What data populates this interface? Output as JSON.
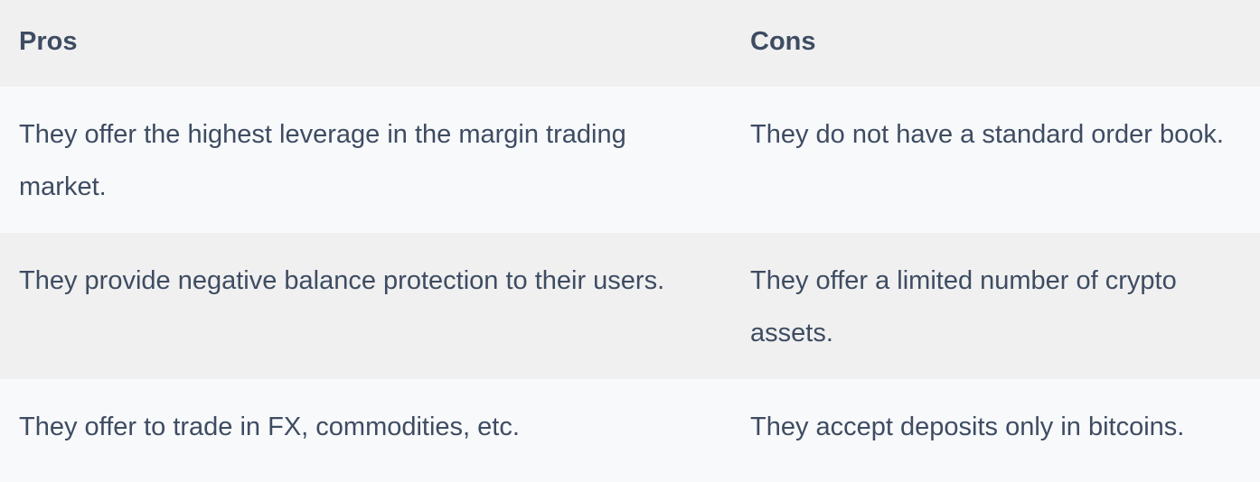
{
  "table": {
    "headers": {
      "pros": "Pros",
      "cons": "Cons"
    },
    "rows": [
      {
        "pro": "They offer the highest leverage in the margin trading market.",
        "con": "They do not have a standard order book."
      },
      {
        "pro": "They provide negative balance protection to their users.",
        "con": "They offer a limited number of crypto assets."
      },
      {
        "pro": "They offer to trade in FX, commodities, etc.",
        "con": "They accept deposits only in bitcoins."
      }
    ]
  },
  "colors": {
    "text": "#3e4c62",
    "header_bg": "#f0f0f0",
    "row_light_bg": "#f8f9fb",
    "row_dark_bg": "#f0f0f0"
  }
}
